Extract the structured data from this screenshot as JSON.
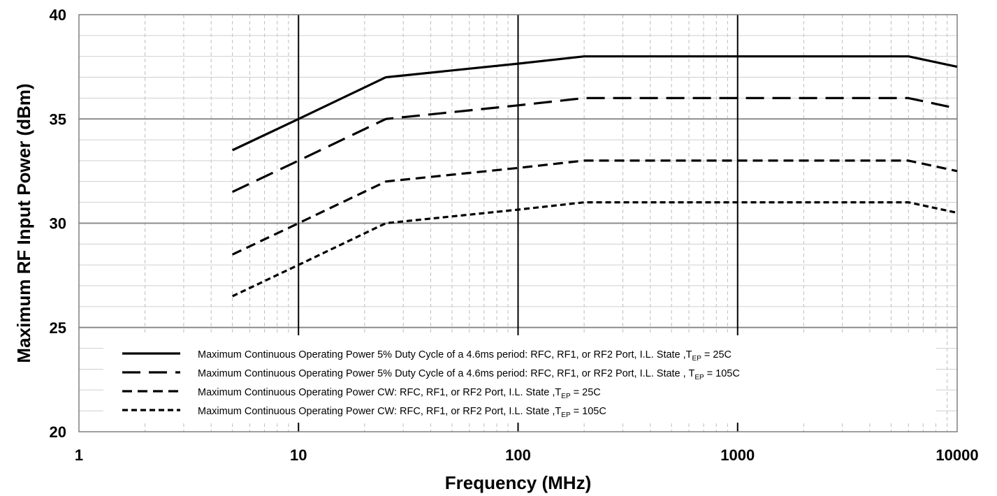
{
  "chart_data": {
    "type": "line",
    "title": "",
    "xlabel": "Frequency (MHz)",
    "ylabel": "Maximum RF Input Power (dBm)",
    "xscale": "log",
    "xlim": [
      1,
      10000
    ],
    "ylim": [
      20,
      40
    ],
    "x_ticks": [
      "1",
      "10",
      "100",
      "1000",
      "10000"
    ],
    "y_ticks": [
      "20",
      "25",
      "30",
      "35",
      "40"
    ],
    "grid": true,
    "legend_position": "bottom-left inside plot",
    "series": [
      {
        "name": "Maximum Continuous Operating Power 5% Duty Cycle of a 4.6ms period: RFC, RF1, or RF2 Port, I.L. State ,T",
        "subscript": "EP",
        "suffix": " = 25C",
        "style": "solid",
        "x": [
          5,
          10,
          25,
          100,
          200,
          1000,
          6000,
          10000
        ],
        "y": [
          33.5,
          35,
          37,
          37.65,
          38,
          38,
          38,
          37.5
        ]
      },
      {
        "name": "Maximum Continuous Operating Power 5% Duty Cycle of a 4.6ms period: RFC, RF1, or RF2 Port, I.L. State , T",
        "subscript": "EP",
        "suffix": " = 105C",
        "style": "long-dash",
        "x": [
          5,
          10,
          25,
          100,
          200,
          1000,
          6000,
          10000
        ],
        "y": [
          31.5,
          33,
          35,
          35.65,
          36,
          36,
          36,
          35.5
        ]
      },
      {
        "name": "Maximum Continuous Operating Power CW: RFC, RF1, or RF2 Port, I.L. State ,T",
        "subscript": "EP",
        "suffix": " = 25C",
        "style": "dash",
        "x": [
          5,
          10,
          25,
          100,
          200,
          1000,
          6000,
          10000
        ],
        "y": [
          28.5,
          30,
          32,
          32.65,
          33,
          33,
          33,
          32.5
        ]
      },
      {
        "name": "Maximum Continuous Operating Power CW: RFC, RF1, or RF2 Port, I.L. State ,T",
        "subscript": "EP",
        "suffix": " = 105C",
        "style": "short-dash",
        "x": [
          5,
          10,
          25,
          100,
          200,
          1000,
          6000,
          10000
        ],
        "y": [
          26.5,
          28,
          30,
          30.65,
          31,
          31,
          31,
          30.5
        ]
      }
    ]
  }
}
